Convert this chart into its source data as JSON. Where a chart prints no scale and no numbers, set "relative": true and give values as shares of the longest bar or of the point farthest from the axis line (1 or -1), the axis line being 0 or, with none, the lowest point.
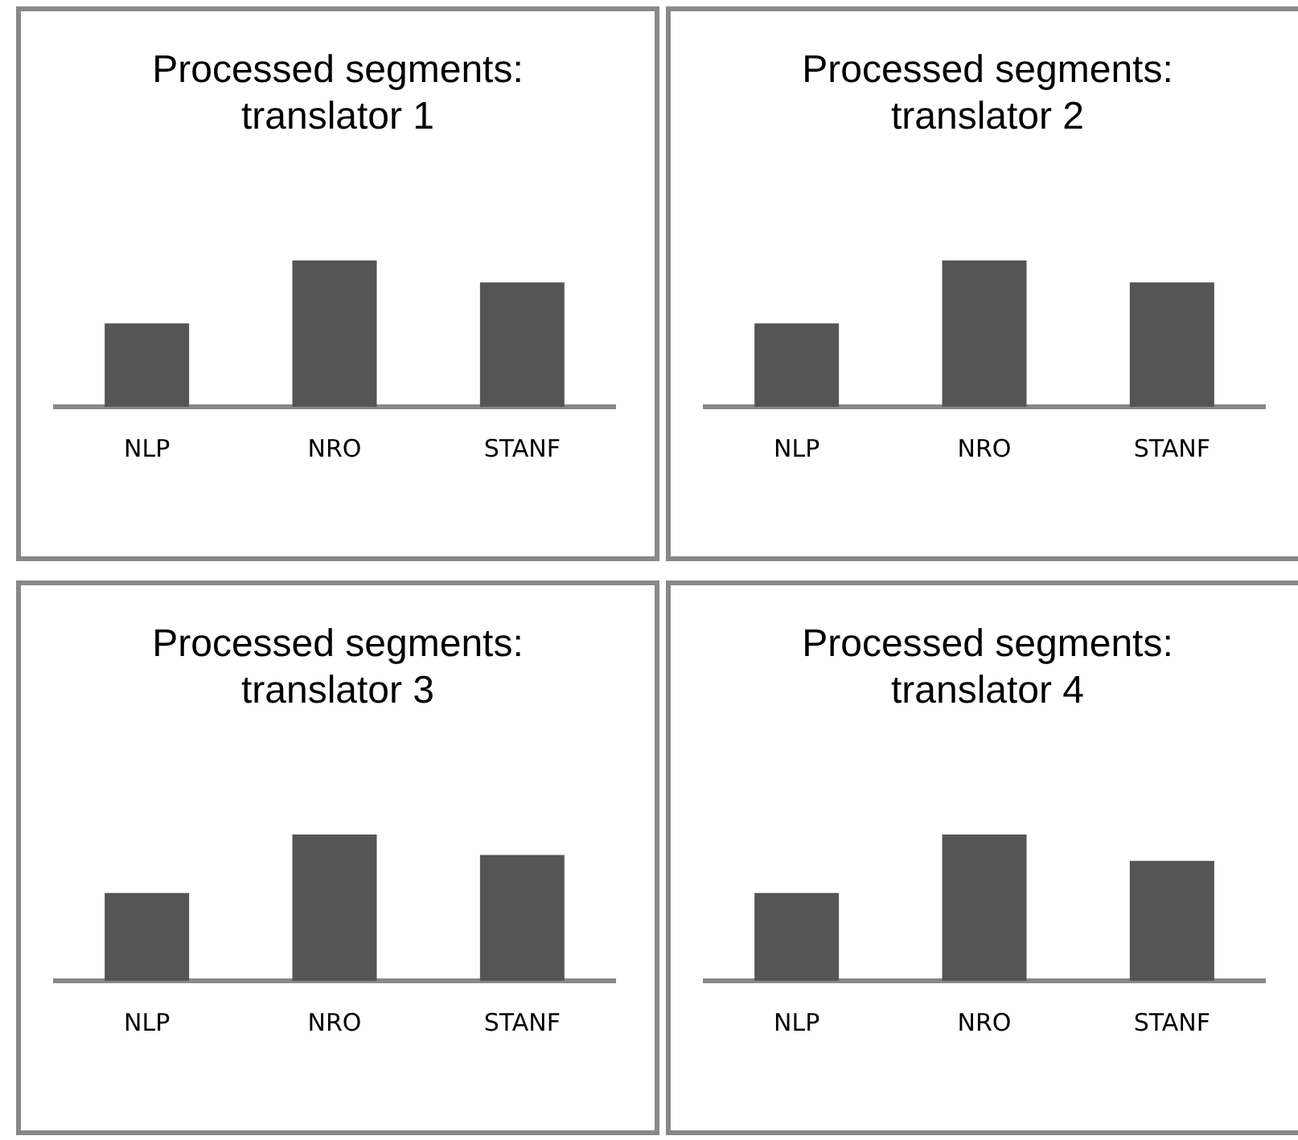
{
  "chart_data": [
    {
      "type": "bar",
      "title": "Processed segments: translator 1",
      "categories": [
        "NLP",
        "NRO",
        "STANF"
      ],
      "values": [
        0.57,
        1,
        0.85
      ],
      "color": "#555555",
      "relative": true,
      "grid": false
    },
    {
      "type": "bar",
      "title": "Processed segments: translator 2",
      "categories": [
        "NLP",
        "NRO",
        "STANF"
      ],
      "values": [
        0.57,
        1,
        0.85
      ],
      "color": "#555555",
      "relative": true,
      "grid": false
    },
    {
      "type": "bar",
      "title": "Processed segments: translator 3",
      "categories": [
        "NLP",
        "NRO",
        "STANF"
      ],
      "values": [
        0.6,
        1,
        0.86
      ],
      "color": "#555555",
      "relative": true,
      "grid": false
    },
    {
      "type": "bar",
      "title": "Processed segments: translator 4",
      "categories": [
        "NLP",
        "NRO",
        "STANF"
      ],
      "values": [
        0.6,
        1,
        0.82
      ],
      "color": "#555555",
      "relative": true,
      "grid": false
    }
  ]
}
